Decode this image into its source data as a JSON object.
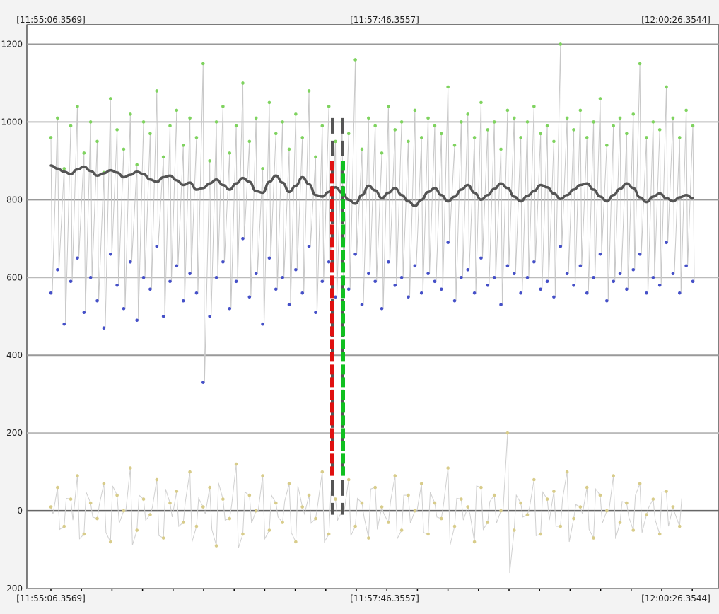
{
  "chart_data": {
    "type": "line",
    "title": "",
    "xlabel": "",
    "ylabel": "",
    "ylim": [
      -200,
      1250
    ],
    "grid": true,
    "y_ticks": [
      -200,
      0,
      200,
      400,
      600,
      800,
      1000,
      1200
    ],
    "x_tick_labels": [
      "[11:55:06.3569]",
      "[11:57:46.3557]",
      "[12:00:26.3544]"
    ],
    "markers": [
      {
        "name": "marker-red",
        "color": "#e01010",
        "y_range": [
          0,
          900
        ],
        "position": "center-left"
      },
      {
        "name": "marker-green",
        "color": "#10c020",
        "y_range": [
          0,
          900
        ],
        "position": "center-right"
      }
    ],
    "series": [
      {
        "key": "upper",
        "color": "#7fd35f",
        "typical_range": [
          800,
          1050
        ],
        "values": [
          960,
          1010,
          880,
          990,
          1040,
          920,
          1000,
          950,
          870,
          1060,
          980,
          930,
          1020,
          890,
          1000,
          970,
          1080,
          910,
          990,
          1030,
          940,
          1010,
          960,
          1150,
          900,
          1000,
          1040,
          920,
          990,
          1100,
          950,
          1010,
          880,
          1050,
          970,
          1000,
          930,
          1020,
          960,
          1080,
          910,
          990,
          1040,
          950,
          1000,
          970,
          1160,
          930,
          1010,
          990,
          920,
          1040,
          980,
          1000,
          950,
          1030,
          960,
          1010,
          990,
          970,
          1090,
          940,
          1000,
          1020,
          960,
          1050,
          980,
          1000,
          930,
          1030,
          1010,
          960,
          1000,
          1040,
          970,
          990,
          950,
          1200,
          1010,
          980,
          1030,
          960,
          1000,
          1060,
          940,
          990,
          1010,
          970,
          1020,
          1150,
          960,
          1000,
          980,
          1090,
          1010,
          960,
          1030,
          990
        ]
      },
      {
        "key": "middle",
        "color": "#4550c8",
        "typical_range": [
          400,
          700
        ],
        "values": [
          560,
          620,
          480,
          590,
          650,
          510,
          600,
          540,
          470,
          660,
          580,
          520,
          640,
          490,
          600,
          570,
          680,
          500,
          590,
          630,
          540,
          610,
          560,
          330,
          500,
          600,
          640,
          520,
          590,
          700,
          550,
          610,
          480,
          650,
          570,
          600,
          530,
          620,
          560,
          680,
          510,
          590,
          640,
          550,
          600,
          570,
          660,
          530,
          610,
          590,
          520,
          640,
          580,
          600,
          550,
          630,
          560,
          610,
          590,
          570,
          690,
          540,
          600,
          620,
          560,
          650,
          580,
          600,
          530,
          630,
          610,
          560,
          600,
          640,
          570,
          590,
          550,
          680,
          610,
          580,
          630,
          560,
          600,
          660,
          540,
          590,
          610,
          570,
          620,
          660,
          560,
          600,
          580,
          690,
          610,
          560,
          630,
          590
        ]
      },
      {
        "key": "lower",
        "color": "#d8cc8a",
        "typical_range": [
          -100,
          120
        ],
        "values": [
          10,
          60,
          -40,
          30,
          90,
          -60,
          20,
          -20,
          70,
          -80,
          40,
          0,
          110,
          -50,
          30,
          -10,
          80,
          -70,
          20,
          50,
          -30,
          100,
          -40,
          10,
          60,
          -90,
          30,
          -20,
          120,
          -60,
          40,
          0,
          90,
          -50,
          20,
          -30,
          70,
          -80,
          10,
          40,
          -20,
          100,
          -60,
          30,
          0,
          80,
          -40,
          20,
          -70,
          60,
          10,
          -30,
          90,
          -50,
          40,
          0,
          70,
          -60,
          20,
          -20,
          110,
          -40,
          30,
          10,
          -80,
          60,
          -30,
          40,
          0,
          200,
          -50,
          20,
          -10,
          80,
          -60,
          30,
          50,
          -40,
          100,
          -20,
          10,
          60,
          -70,
          40,
          0,
          90,
          -30,
          20,
          -50,
          70,
          -10,
          30,
          -60,
          50,
          10,
          -40
        ]
      },
      {
        "key": "trend",
        "color": "#555555",
        "typical_range": [
          760,
          890
        ],
        "values": [
          888,
          880,
          872,
          866,
          878,
          885,
          874,
          862,
          868,
          876,
          870,
          858,
          864,
          872,
          866,
          852,
          846,
          858,
          862,
          850,
          838,
          844,
          826,
          830,
          842,
          852,
          838,
          826,
          842,
          856,
          846,
          822,
          818,
          846,
          862,
          844,
          820,
          836,
          858,
          840,
          812,
          808,
          820,
          832,
          818,
          800,
          790,
          812,
          836,
          824,
          804,
          818,
          830,
          812,
          796,
          784,
          800,
          820,
          830,
          812,
          796,
          808,
          826,
          838,
          818,
          800,
          812,
          828,
          842,
          830,
          808,
          796,
          810,
          822,
          838,
          832,
          816,
          802,
          812,
          826,
          838,
          842,
          826,
          808,
          796,
          812,
          828,
          842,
          830,
          806,
          794,
          808,
          816,
          804,
          796,
          806,
          812,
          804
        ]
      }
    ]
  }
}
